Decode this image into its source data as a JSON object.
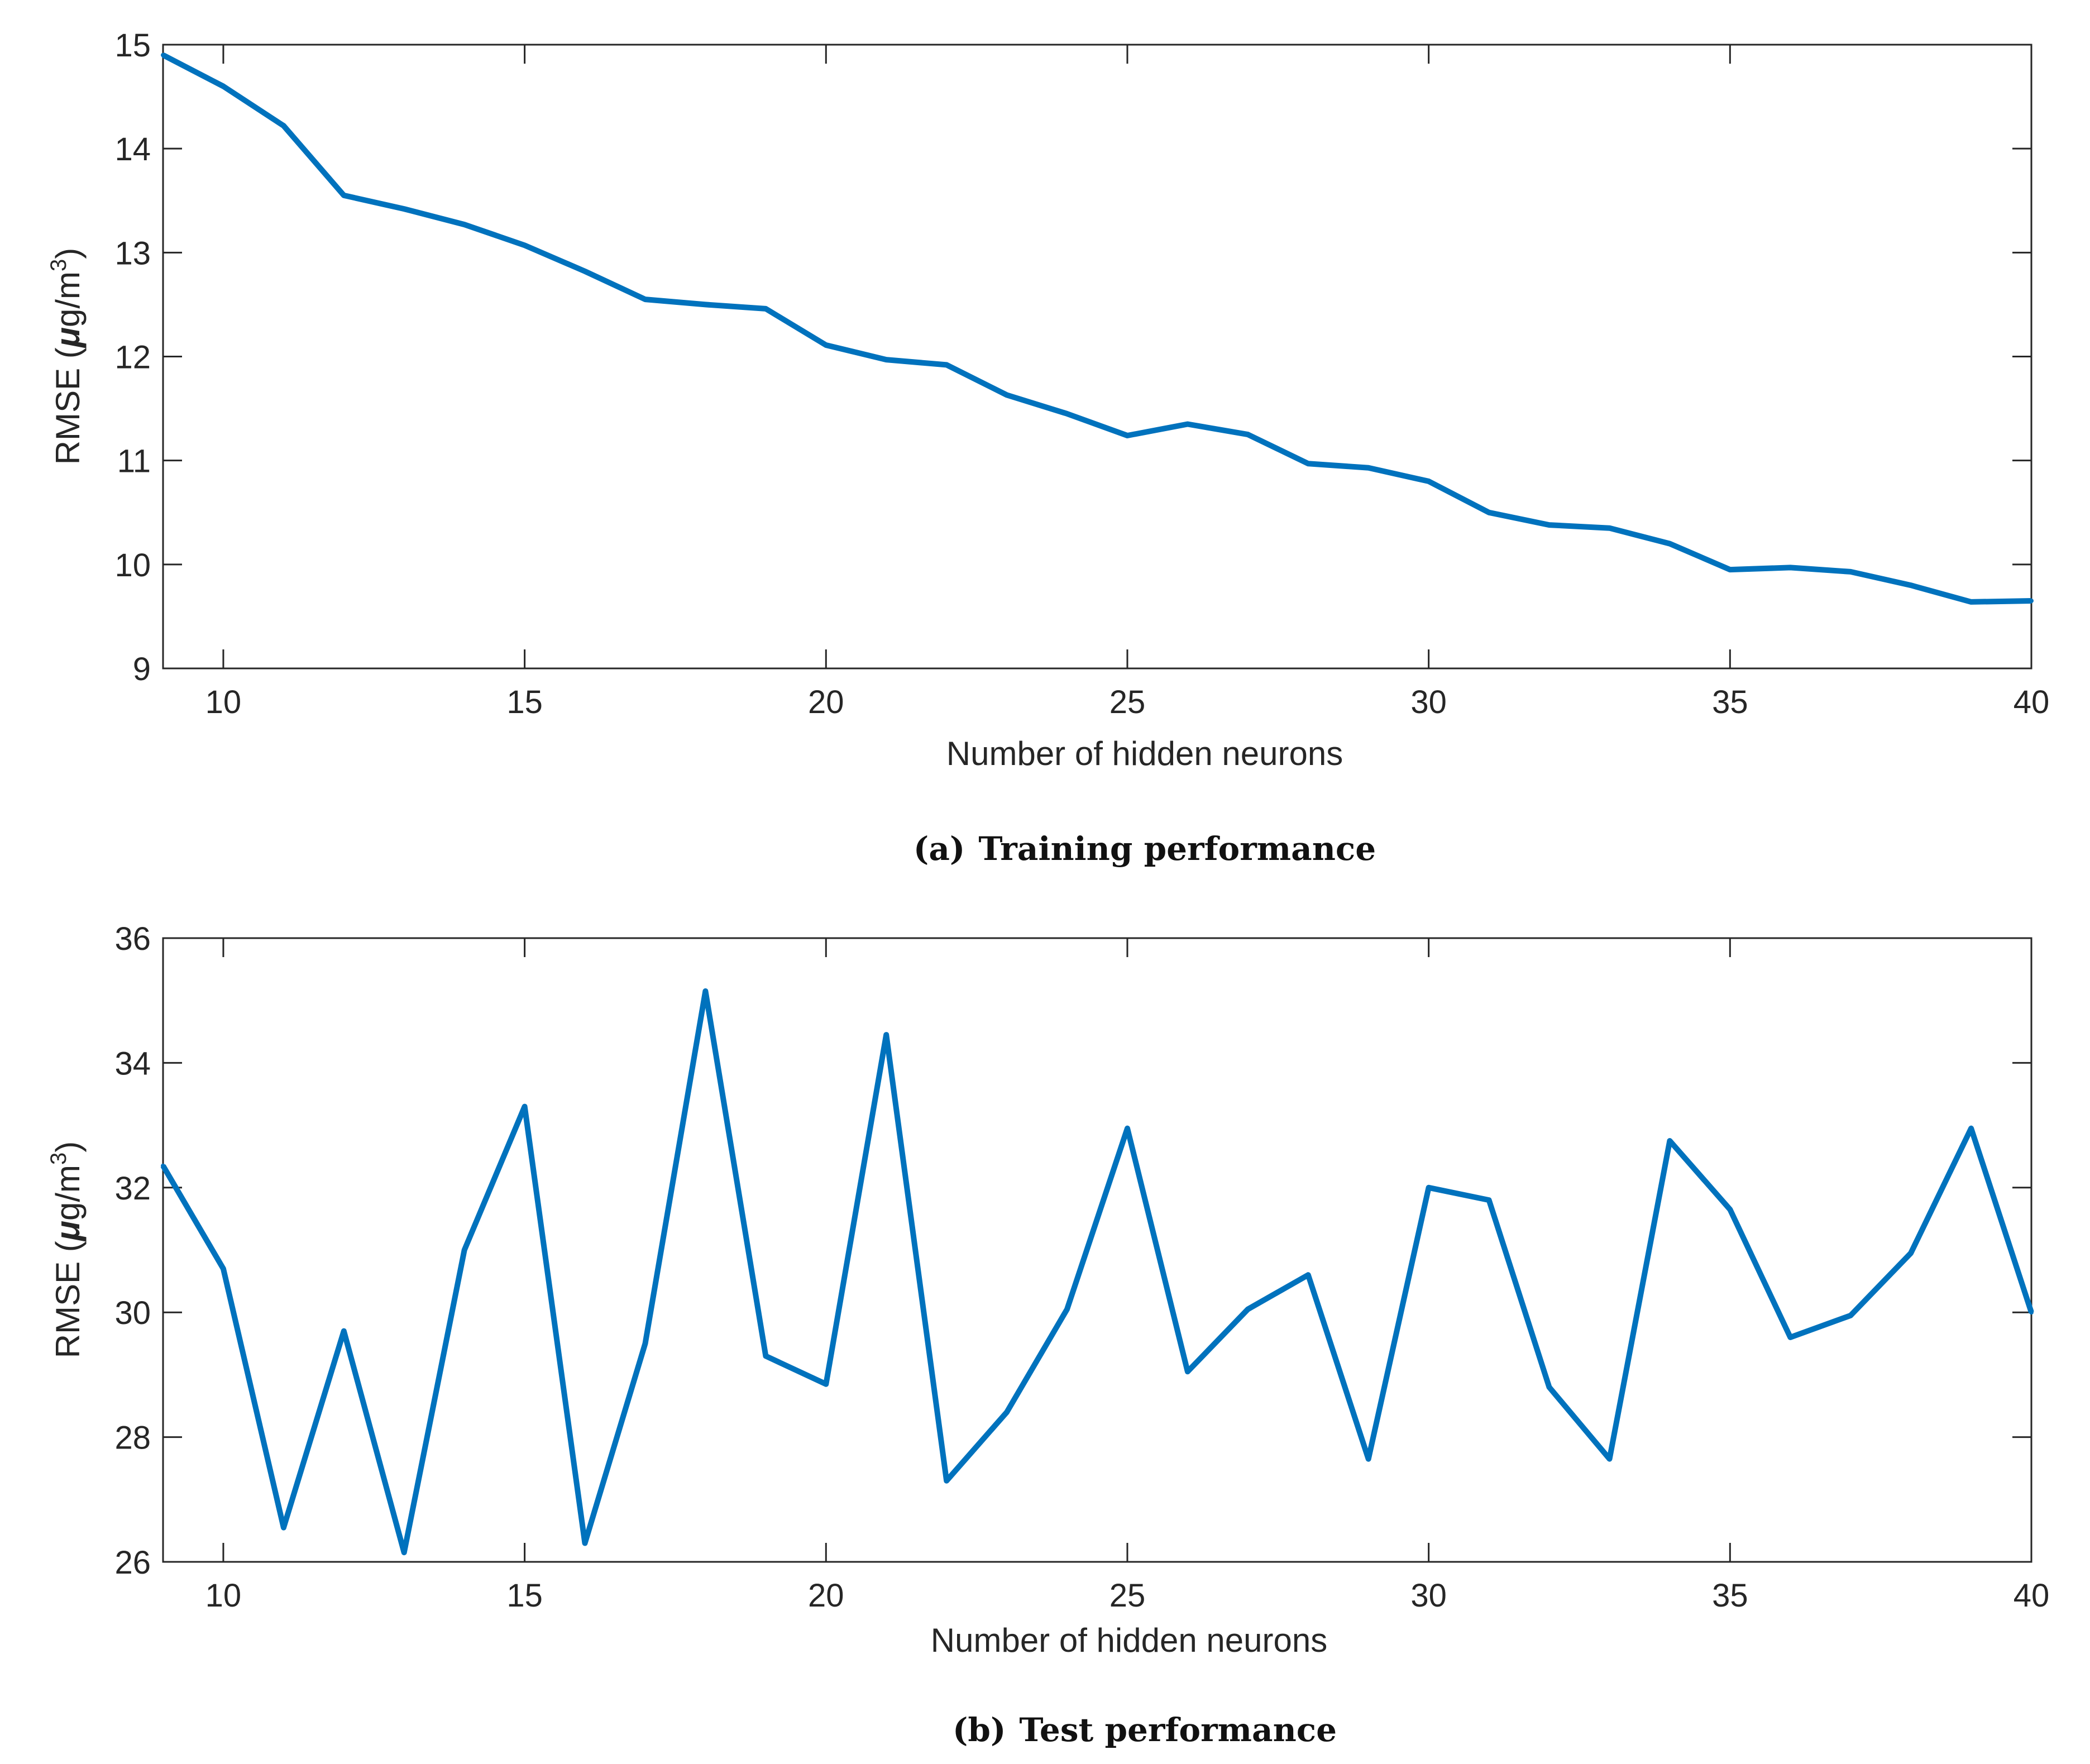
{
  "chart_data": [
    {
      "type": "line",
      "caption_label": "(a)",
      "caption_title": "Training performance",
      "xlabel": "Number of hidden neurons",
      "ylabel_prefix": "RMSE",
      "ylabel_unit_mu": "μ",
      "ylabel_unit_rest": "g/m",
      "ylabel_unit_sup": "3",
      "xlim": [
        9,
        40
      ],
      "ylim": [
        9,
        15
      ],
      "xticks": [
        10,
        15,
        20,
        25,
        30,
        35,
        40
      ],
      "xtick_labels": [
        "10",
        "15",
        "20",
        "25",
        "30",
        "35",
        "40"
      ],
      "yticks": [
        9,
        10,
        11,
        12,
        13,
        14,
        15
      ],
      "ytick_labels": [
        "9",
        "10",
        "11",
        "12",
        "13",
        "14",
        "15"
      ],
      "color": "#0072BD",
      "x": [
        9,
        10,
        11,
        12,
        13,
        14,
        15,
        16,
        17,
        18,
        19,
        20,
        21,
        22,
        23,
        24,
        25,
        26,
        27,
        28,
        29,
        30,
        31,
        32,
        33,
        34,
        35,
        36,
        37,
        38,
        39,
        40
      ],
      "values": [
        14.9,
        14.6,
        14.22,
        13.55,
        13.42,
        13.27,
        13.07,
        12.82,
        12.55,
        12.5,
        12.46,
        12.11,
        11.97,
        11.92,
        11.63,
        11.45,
        11.24,
        11.35,
        11.25,
        10.97,
        10.93,
        10.8,
        10.5,
        10.38,
        10.35,
        10.2,
        9.95,
        9.97,
        9.93,
        9.8,
        9.64,
        9.65
      ]
    },
    {
      "type": "line",
      "caption_label": "(b)",
      "caption_title": "Test performance",
      "xlabel": "Number of hidden neurons",
      "ylabel_prefix": "RMSE",
      "ylabel_unit_mu": "μ",
      "ylabel_unit_rest": "g/m",
      "ylabel_unit_sup": "3",
      "xlim": [
        9,
        40
      ],
      "ylim": [
        26,
        36
      ],
      "xticks": [
        10,
        15,
        20,
        25,
        30,
        35,
        40
      ],
      "xtick_labels": [
        "10",
        "15",
        "20",
        "25",
        "30",
        "35",
        "40"
      ],
      "yticks": [
        26,
        28,
        30,
        32,
        34,
        36
      ],
      "ytick_labels": [
        "26",
        "28",
        "30",
        "32",
        "34",
        "36"
      ],
      "color": "#0072BD",
      "x": [
        9,
        10,
        11,
        12,
        13,
        14,
        15,
        16,
        17,
        18,
        19,
        20,
        21,
        22,
        23,
        24,
        25,
        26,
        27,
        28,
        29,
        30,
        31,
        32,
        33,
        34,
        35,
        36,
        37,
        38,
        39,
        40
      ],
      "values": [
        32.35,
        30.7,
        26.55,
        29.7,
        26.15,
        31.0,
        33.3,
        26.3,
        29.5,
        35.15,
        29.3,
        28.85,
        34.45,
        27.3,
        28.4,
        30.05,
        32.95,
        29.05,
        30.05,
        30.6,
        27.65,
        32.0,
        31.8,
        28.8,
        27.65,
        32.75,
        31.65,
        29.6,
        29.95,
        30.95,
        32.95,
        30.0
      ]
    }
  ]
}
